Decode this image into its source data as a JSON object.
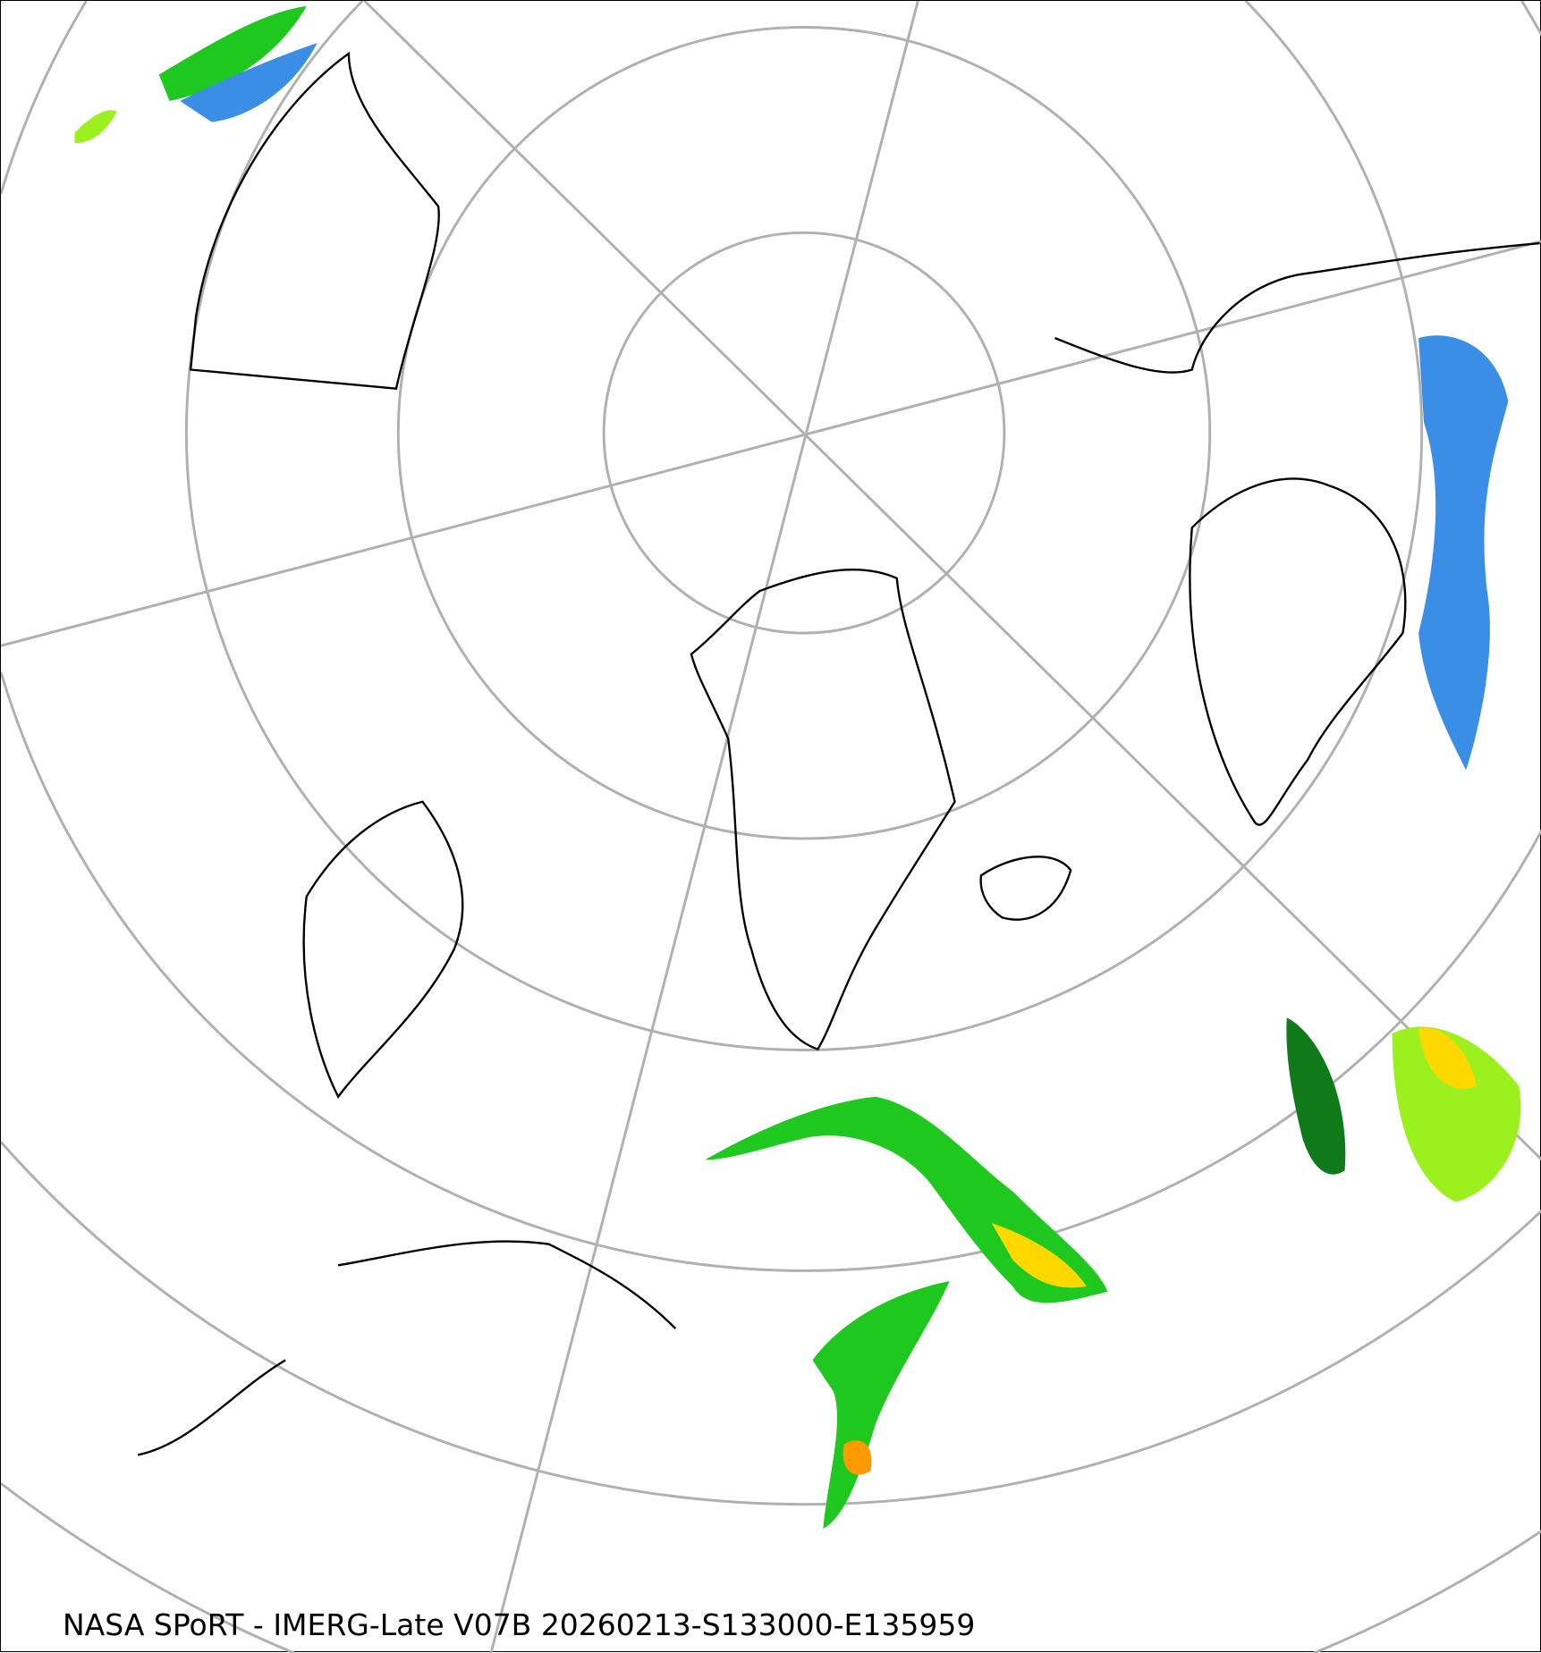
{
  "caption": "NASA SPoRT - IMERG-Late V07B 20260213-S133000-E135959",
  "projection": "north-polar-stereographic",
  "colors": {
    "graticule": "#b0b0b0",
    "coastline": "#000000",
    "precip_light_blue": "#aad4ff",
    "precip_blue": "#3a8ee6",
    "precip_dark_blue": "#0a4fb4",
    "precip_dark_green": "#0f7a1a",
    "precip_green": "#1ec81e",
    "precip_light_green": "#9bf01e",
    "precip_yellow": "#ffd800",
    "precip_orange": "#ff9a00",
    "precip_red": "#ff2a00",
    "precip_magenta": "#ff40c0"
  }
}
